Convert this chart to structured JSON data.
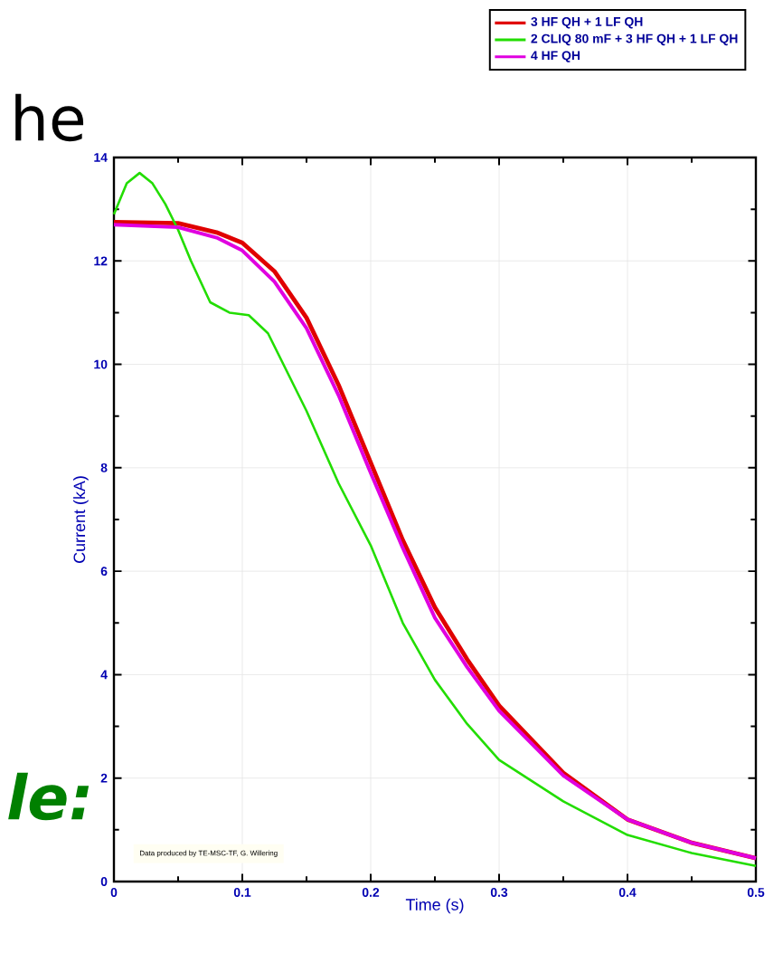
{
  "chart_data": {
    "type": "line",
    "xlabel": "Time (s)",
    "ylabel": "Current (kA)",
    "xlim": [
      0,
      0.5
    ],
    "ylim": [
      0,
      14
    ],
    "xticks": [
      0,
      0.1,
      0.2,
      0.3,
      0.4,
      0.5
    ],
    "yticks": [
      0,
      2,
      4,
      6,
      8,
      10,
      12,
      14
    ],
    "grid": true,
    "legend": "top right",
    "line_style": "solid",
    "marker": "none",
    "series": [
      {
        "name": "3 HF QH + 1 LF QH",
        "color": "#e00000",
        "x": [
          0,
          0.05,
          0.08,
          0.1,
          0.125,
          0.15,
          0.175,
          0.2,
          0.225,
          0.25,
          0.275,
          0.3,
          0.35,
          0.4,
          0.45,
          0.5
        ],
        "values": [
          12.75,
          12.73,
          12.55,
          12.35,
          11.8,
          10.9,
          9.6,
          8.1,
          6.6,
          5.3,
          4.3,
          3.4,
          2.1,
          1.2,
          0.75,
          0.45
        ]
      },
      {
        "name": "2 CLIQ 80 mF + 3 HF QH + 1 LF QH",
        "color": "#22dd00",
        "x": [
          0,
          0.01,
          0.02,
          0.03,
          0.04,
          0.05,
          0.06,
          0.075,
          0.09,
          0.105,
          0.12,
          0.15,
          0.175,
          0.2,
          0.225,
          0.25,
          0.275,
          0.3,
          0.35,
          0.4,
          0.45,
          0.5
        ],
        "values": [
          12.9,
          13.5,
          13.7,
          13.5,
          13.1,
          12.6,
          12.0,
          11.2,
          11.0,
          10.95,
          10.6,
          9.1,
          7.7,
          6.5,
          5.0,
          3.9,
          3.05,
          2.35,
          1.55,
          0.9,
          0.55,
          0.3
        ]
      },
      {
        "name": "4 HF QH",
        "color": "#e000e0",
        "x": [
          0,
          0.05,
          0.08,
          0.1,
          0.125,
          0.15,
          0.175,
          0.2,
          0.225,
          0.25,
          0.275,
          0.3,
          0.35,
          0.4,
          0.45,
          0.5
        ],
        "values": [
          12.7,
          12.65,
          12.45,
          12.2,
          11.6,
          10.7,
          9.4,
          7.9,
          6.45,
          5.1,
          4.15,
          3.3,
          2.05,
          1.2,
          0.75,
          0.45
        ]
      }
    ],
    "annotations": [
      "Data produced by TE-MSC-TF, G. Willering",
      "he",
      "le:"
    ]
  }
}
